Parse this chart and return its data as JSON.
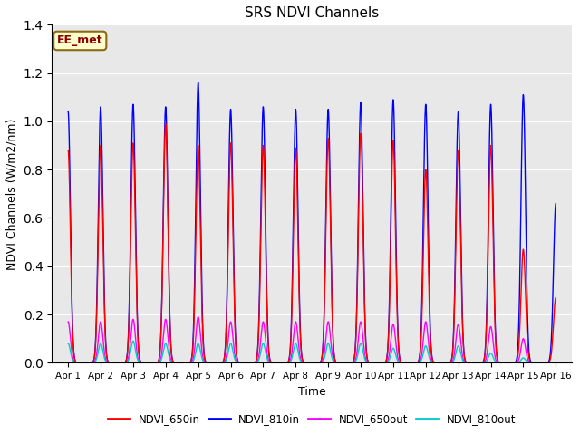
{
  "title": "SRS NDVI Channels",
  "xlabel": "Time",
  "ylabel": "NDVI Channels (W/m2/nm)",
  "ylim": [
    0,
    1.4
  ],
  "yticks": [
    0.0,
    0.2,
    0.4,
    0.6,
    0.8,
    1.0,
    1.2,
    1.4
  ],
  "xtick_labels": [
    "Apr 1",
    "Apr 2",
    "Apr 3",
    "Apr 4",
    "Apr 5",
    "Apr 6",
    "Apr 7",
    "Apr 8",
    "Apr 9",
    "Apr 10",
    "Apr 11",
    "Apr 12",
    "Apr 13",
    "Apr 14",
    "Apr 15",
    "Apr 16"
  ],
  "annotation_text": "EE_met",
  "annotation_bg": "#ffffcc",
  "annotation_border": "#8b6914",
  "colors": {
    "NDVI_650in": "#ff0000",
    "NDVI_810in": "#0000ff",
    "NDVI_650out": "#ff00ff",
    "NDVI_810out": "#00cccc"
  },
  "background_color": "#e8e8e8",
  "grid_color": "#ffffff",
  "peak_810in": [
    1.04,
    1.06,
    1.07,
    1.06,
    1.16,
    1.05,
    1.06,
    1.05,
    1.05,
    1.08,
    1.09,
    1.07,
    1.04,
    1.07,
    1.11,
    0.66
  ],
  "peak_650in": [
    0.88,
    0.9,
    0.91,
    0.99,
    0.9,
    0.91,
    0.9,
    0.89,
    0.93,
    0.95,
    0.92,
    0.8,
    0.88,
    0.9,
    0.47,
    0.27
  ],
  "peak_650out": [
    0.17,
    0.17,
    0.18,
    0.18,
    0.19,
    0.17,
    0.17,
    0.17,
    0.17,
    0.17,
    0.16,
    0.17,
    0.16,
    0.15,
    0.1,
    0.0
  ],
  "peak_810out": [
    0.08,
    0.08,
    0.09,
    0.08,
    0.08,
    0.08,
    0.08,
    0.08,
    0.08,
    0.08,
    0.06,
    0.07,
    0.07,
    0.04,
    0.02,
    0.0
  ],
  "pulse_sigma": 0.07,
  "points_per_day": 500
}
